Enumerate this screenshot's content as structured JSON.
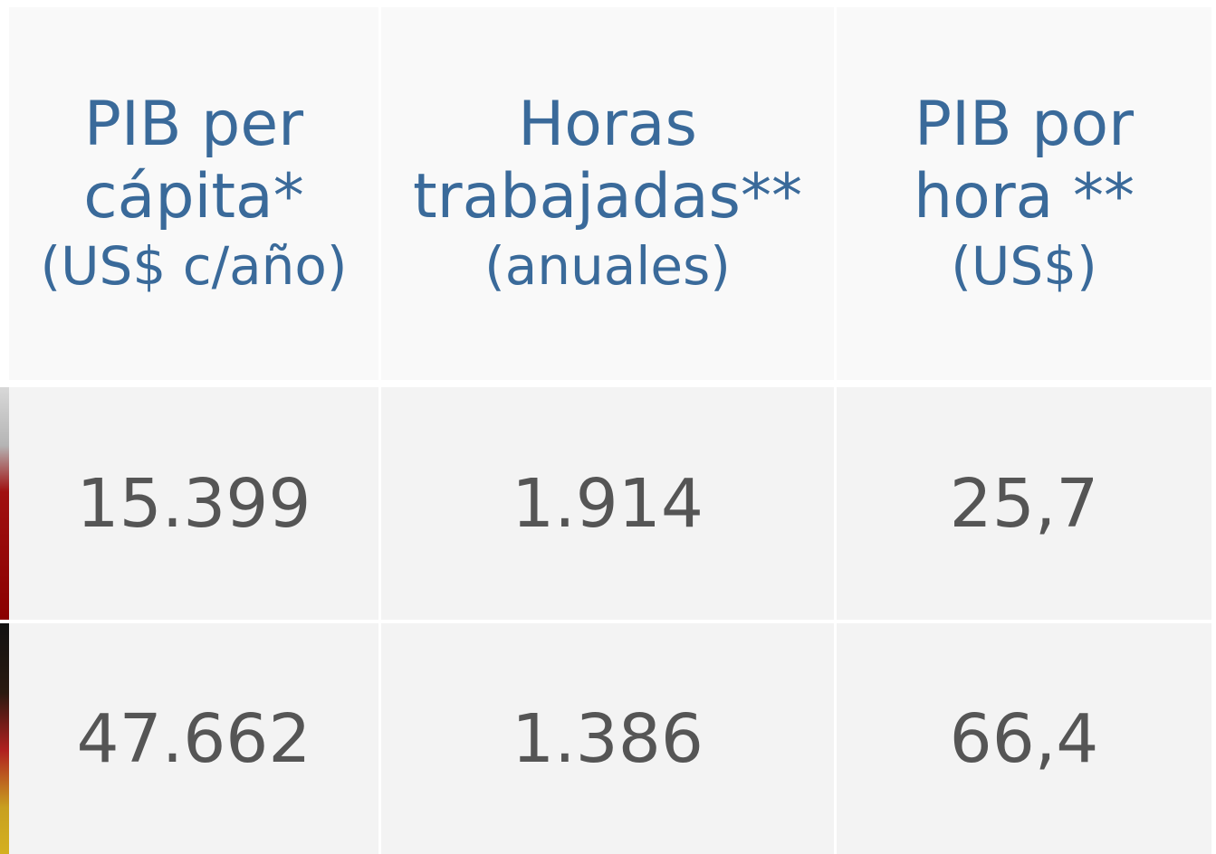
{
  "table": {
    "header": [
      {
        "title": "PIB per cápita*",
        "subtitle": "(US$ c/año)"
      },
      {
        "title": "Horas trabajadas**",
        "subtitle": "(anuales)"
      },
      {
        "title": "PIB por hora **",
        "subtitle": "(US$)"
      }
    ],
    "rows": [
      [
        "15.399",
        "1.914",
        "25,7"
      ],
      [
        "47.662",
        "1.386",
        "66,4"
      ]
    ]
  }
}
